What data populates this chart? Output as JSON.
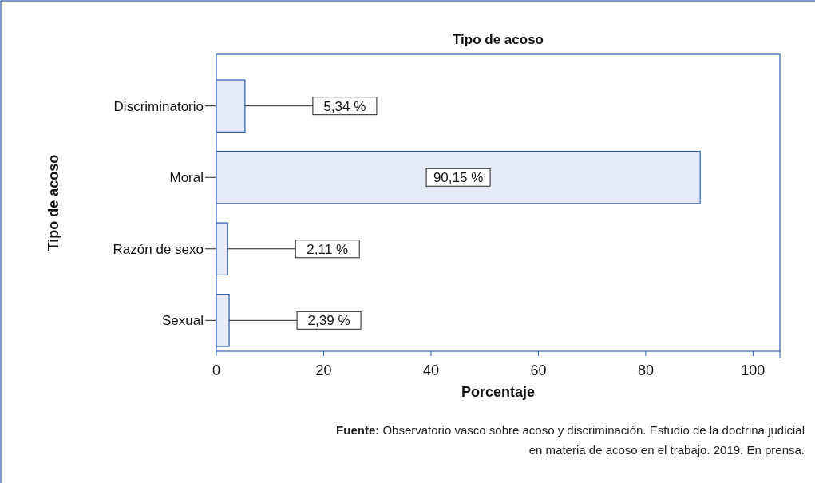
{
  "chart_data": {
    "type": "bar",
    "orientation": "horizontal",
    "title": "Tipo de acoso",
    "xlabel": "Porcentaje",
    "ylabel": "Tipo de acoso",
    "categories": [
      "Discriminatorio",
      "Moral",
      "Razón de sexo",
      "Sexual"
    ],
    "values": [
      5.34,
      90.15,
      2.11,
      2.39
    ],
    "value_labels": [
      "5,34 %",
      "90,15 %",
      "2,11 %",
      "2,39 %"
    ],
    "color": "#e6e9f6",
    "xlim": [
      0,
      105
    ],
    "xticks": [
      0,
      20,
      40,
      60,
      80,
      100
    ],
    "grid": false,
    "annotations": [
      "Fuente: Observatorio vasco sobre acoso y discriminación. Estudio de la doctrina judicial",
      "en materia de acoso en el trabajo. 2019. En prensa."
    ]
  }
}
